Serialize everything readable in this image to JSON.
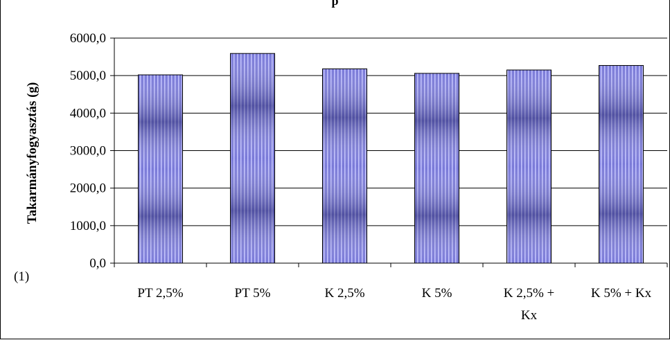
{
  "chart_data": {
    "type": "bar",
    "title_fragment": "p",
    "ylabel": "Takarmányfogyasztás (g)",
    "xlabel": "",
    "corner_label": "(1)",
    "categories": [
      [
        "PT 2,5%"
      ],
      [
        "PT 5%"
      ],
      [
        "K 2,5%"
      ],
      [
        "K 5%"
      ],
      [
        "K 2,5% +",
        "Kx"
      ],
      [
        "K 5% + Kx"
      ]
    ],
    "values": [
      5020,
      5590,
      5180,
      5060,
      5150,
      5270
    ],
    "ylim": [
      0,
      6000
    ],
    "yticks": [
      "0,0",
      "1000,0",
      "2000,0",
      "3000,0",
      "4000,0",
      "5000,0",
      "6000,0"
    ],
    "grid": true,
    "legend": "none",
    "bar_color": "#8080e0"
  }
}
